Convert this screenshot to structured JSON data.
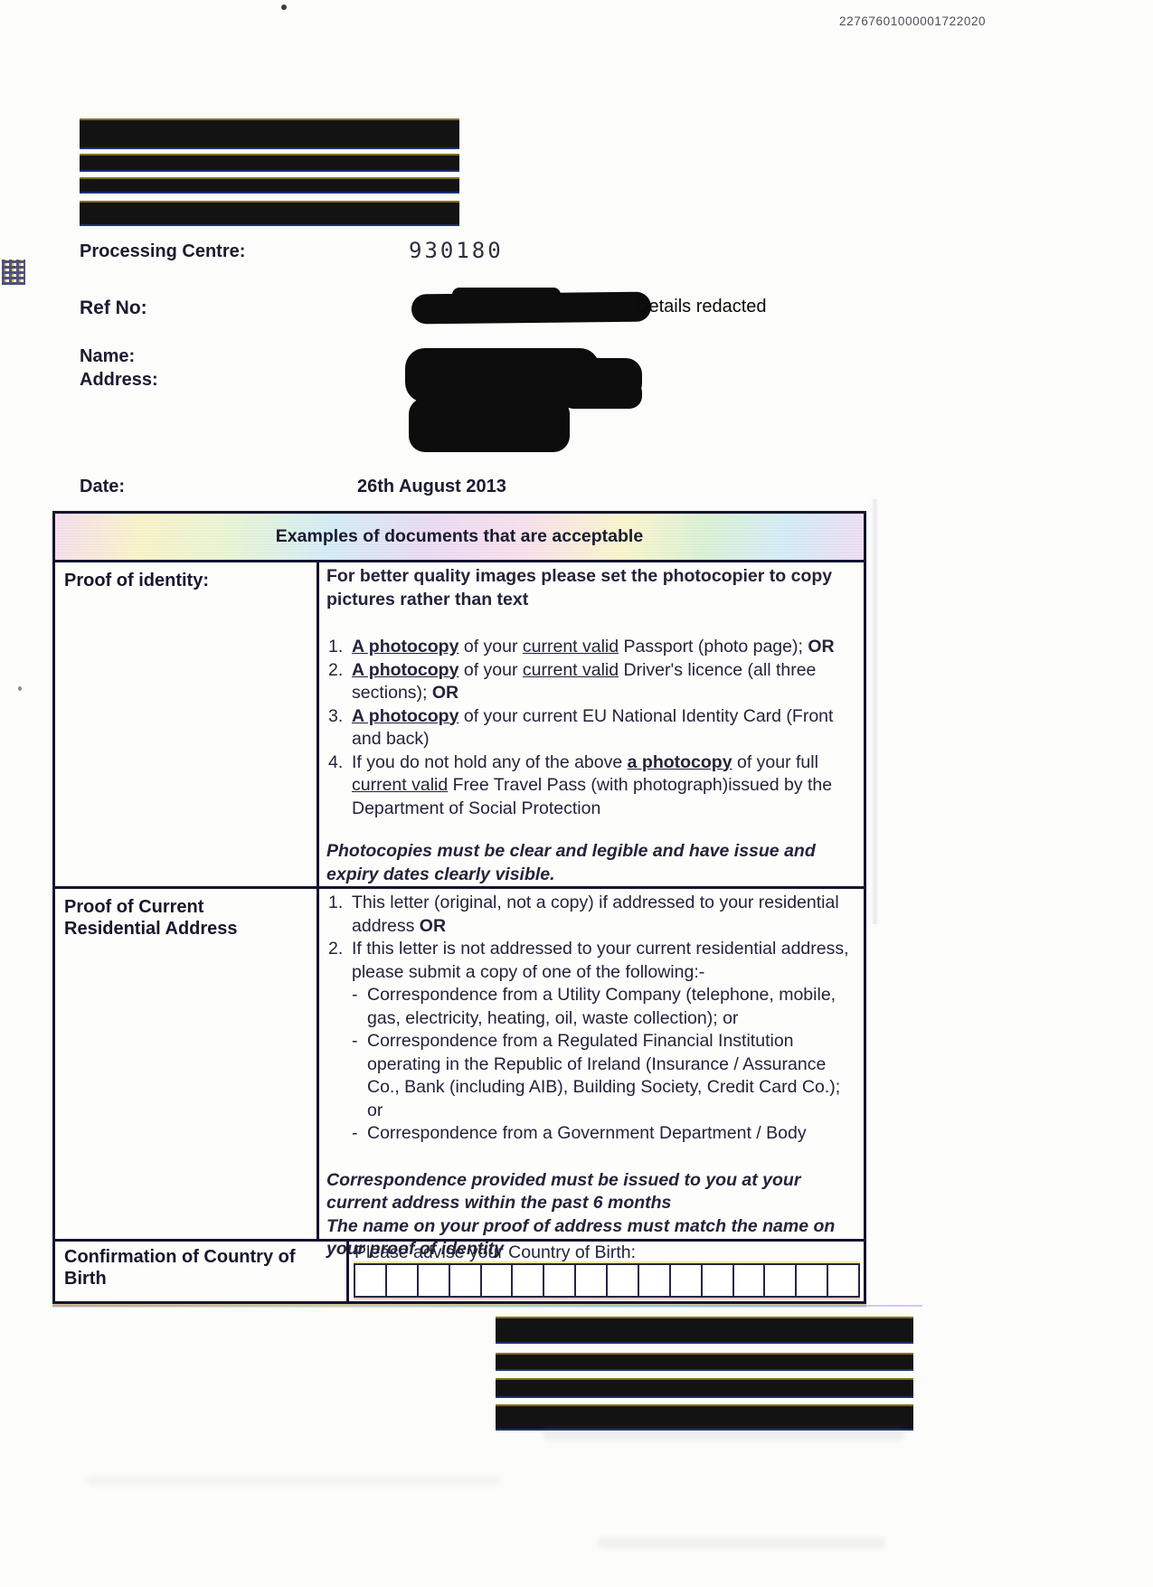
{
  "document": {
    "doc_number": "22767601000001722020",
    "details_redacted_note": "Details redacted",
    "fields": {
      "processing_centre": {
        "label": "Processing Centre:",
        "value": "930180"
      },
      "ref_no": {
        "label": "Ref No:"
      },
      "name": {
        "label": "Name:"
      },
      "address": {
        "label": "Address:"
      },
      "date": {
        "label": "Date:",
        "value": "26th August 2013"
      }
    },
    "icons": {
      "top_left_barcode": "datamatrix-2d-barcode"
    }
  },
  "table": {
    "header": "Examples of documents that are acceptable",
    "rows": {
      "identity": {
        "label": "Proof of identity:",
        "intro": "For better quality images please set the photocopier to copy pictures rather than text",
        "items": [
          [
            {
              "t": "A photocopy",
              "b": true,
              "u": true
            },
            {
              "t": " of your "
            },
            {
              "t": "current valid",
              "u": true
            },
            {
              "t": " Passport (photo page); "
            },
            {
              "t": "OR",
              "b": true
            }
          ],
          [
            {
              "t": "A photocopy",
              "b": true,
              "u": true
            },
            {
              "t": " of your "
            },
            {
              "t": "current valid",
              "u": true
            },
            {
              "t": " Driver's licence (all three sections); "
            },
            {
              "t": "OR",
              "b": true
            }
          ],
          [
            {
              "t": "A photocopy",
              "b": true,
              "u": true
            },
            {
              "t": " of your current EU National Identity Card (Front and back)"
            }
          ],
          [
            {
              "t": "If you do not hold any of the above "
            },
            {
              "t": "a photocopy",
              "b": true,
              "u": true
            },
            {
              "t": " of your full "
            },
            {
              "t": "current valid",
              "u": true
            },
            {
              "t": " Free Travel Pass (with photograph)issued by the Department of Social Protection"
            }
          ]
        ],
        "note": "Photocopies must be clear and legible and have issue and expiry dates clearly visible."
      },
      "residential": {
        "label": "Proof of Current Residential Address",
        "items": [
          [
            {
              "t": "This letter (original, not a copy) if addressed to your residential address "
            },
            {
              "t": "OR",
              "b": true
            }
          ],
          [
            {
              "t": "If this letter is not addressed to your current residential address, please submit a copy of one of the following:-"
            }
          ]
        ],
        "sub_items": [
          "Correspondence from a Utility Company (telephone, mobile, gas, electricity, heating, oil, waste collection); or",
          "Correspondence from a Regulated Financial Institution operating in the Republic of Ireland (Insurance / Assurance Co., Bank (including AIB), Building Society, Credit Card Co.); or",
          "Correspondence from a Government Department / Body"
        ],
        "notes": [
          "Correspondence provided must be issued to you at your current address within the past 6 months",
          "The name on your proof of address must match the name on your proof of identity"
        ]
      },
      "birth": {
        "label": "Confirmation of Country of Birth",
        "prompt": "Please advise your Country of Birth:",
        "box_count": 16
      }
    }
  },
  "colors": {
    "text": "#23233a",
    "table_border": "#14142e",
    "redaction": "#131313",
    "header_band": [
      "#f3d9ea",
      "#f6f1c4",
      "#e4f2cf",
      "#cfe9f4",
      "#e6d7f0",
      "#f6dce8"
    ]
  }
}
